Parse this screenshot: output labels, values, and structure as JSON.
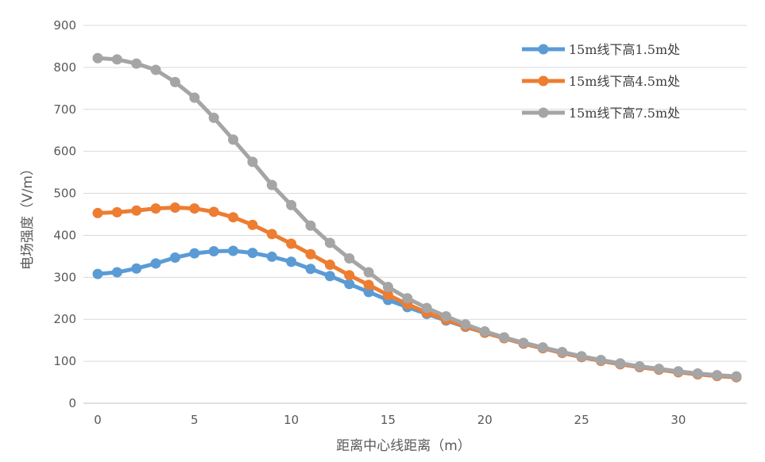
{
  "chart_data": {
    "type": "line",
    "title": "",
    "xlabel": "距离中心线距离（m）",
    "ylabel": "电场强度（V/m）",
    "xlim": [
      0,
      33
    ],
    "ylim": [
      0,
      900
    ],
    "xticks": [
      0,
      5,
      10,
      15,
      20,
      25,
      30
    ],
    "yticks": [
      0,
      100,
      200,
      300,
      400,
      500,
      600,
      700,
      800,
      900
    ],
    "grid": "horizontal",
    "legend_position": "top-right",
    "x": [
      0,
      1,
      2,
      3,
      4,
      5,
      6,
      7,
      8,
      9,
      10,
      11,
      12,
      13,
      14,
      15,
      16,
      17,
      18,
      19,
      20,
      21,
      22,
      23,
      24,
      25,
      26,
      27,
      28,
      29,
      30,
      31,
      32,
      33
    ],
    "series": [
      {
        "name": "15m线下高1.5m处",
        "color": "#5b9bd5",
        "values": [
          308,
          312,
          321,
          333,
          347,
          357,
          362,
          363,
          358,
          349,
          337,
          320,
          303,
          284,
          265,
          246,
          229,
          213,
          197,
          182,
          168,
          155,
          142,
          131,
          120,
          110,
          101,
          93,
          86,
          80,
          74,
          69,
          65,
          62
        ]
      },
      {
        "name": "15m线下高4.5m处",
        "color": "#ed7d31",
        "values": [
          453,
          455,
          459,
          464,
          466,
          464,
          456,
          443,
          425,
          403,
          380,
          355,
          330,
          305,
          282,
          258,
          236,
          216,
          199,
          183,
          168,
          155,
          142,
          131,
          120,
          110,
          101,
          93,
          86,
          80,
          74,
          69,
          65,
          62
        ]
      },
      {
        "name": "15m线下高7.5m处",
        "color": "#a5a5a5",
        "values": [
          822,
          819,
          809,
          794,
          765,
          728,
          680,
          628,
          575,
          520,
          472,
          423,
          382,
          345,
          312,
          277,
          250,
          227,
          207,
          188,
          171,
          157,
          144,
          133,
          122,
          112,
          103,
          95,
          88,
          82,
          76,
          71,
          67,
          64
        ]
      }
    ]
  }
}
